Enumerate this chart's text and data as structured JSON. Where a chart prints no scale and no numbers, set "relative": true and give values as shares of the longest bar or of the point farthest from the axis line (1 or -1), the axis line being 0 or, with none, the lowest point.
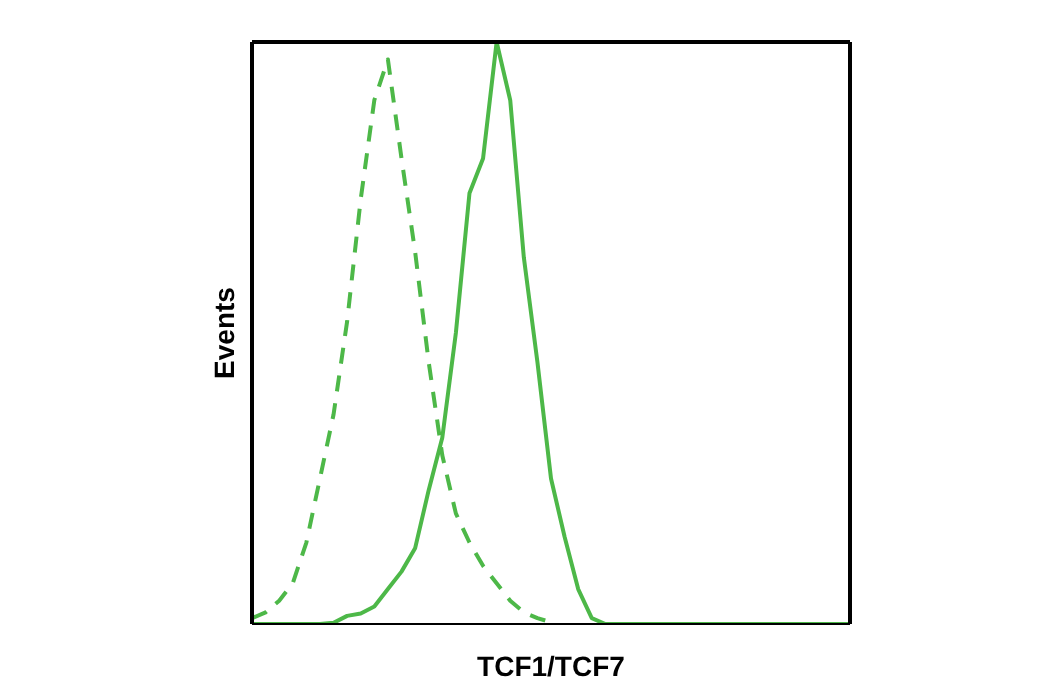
{
  "chart_data": {
    "type": "line",
    "relative": true,
    "xlabel": "TCF1/TCF7",
    "ylabel": "Events",
    "categories": [
      null,
      null,
      null,
      null,
      null,
      null,
      null,
      null,
      null,
      null,
      null,
      null,
      null,
      null,
      null,
      null,
      null,
      null,
      null,
      null,
      null,
      null,
      null,
      null,
      null,
      null,
      null,
      null,
      null,
      null,
      null,
      null,
      null,
      null,
      null,
      null,
      null,
      null,
      null,
      null,
      null,
      null,
      null,
      null,
      null
    ],
    "marker": "none",
    "legend": false,
    "grid": false,
    "series": [
      {
        "color": "#4db848",
        "line_style": "dashed",
        "values": [
          0.01,
          0.02,
          0.04,
          0.07,
          0.14,
          0.25,
          0.36,
          0.52,
          0.73,
          0.9,
          0.97,
          0.8,
          0.64,
          0.45,
          0.29,
          0.19,
          0.14,
          0.1,
          0.07,
          0.04,
          0.02,
          0.01,
          0.003,
          null,
          null,
          null,
          null,
          null,
          null,
          null,
          null,
          null,
          null,
          null,
          null,
          null,
          null,
          null,
          null,
          null,
          null,
          null,
          null,
          null,
          null
        ]
      },
      {
        "color": "#4db848",
        "line_style": "solid",
        "values": [
          0,
          0,
          0,
          0,
          0,
          0,
          0.002,
          0.014,
          0.018,
          0.03,
          0.06,
          0.09,
          0.13,
          0.23,
          0.32,
          0.5,
          0.74,
          0.8,
          1,
          0.9,
          0.63,
          0.45,
          0.25,
          0.15,
          0.06,
          0.01,
          0,
          0,
          0,
          0,
          0,
          0,
          0,
          0,
          0,
          0,
          0,
          0,
          0,
          0,
          0,
          0,
          0,
          0,
          0
        ]
      }
    ]
  }
}
